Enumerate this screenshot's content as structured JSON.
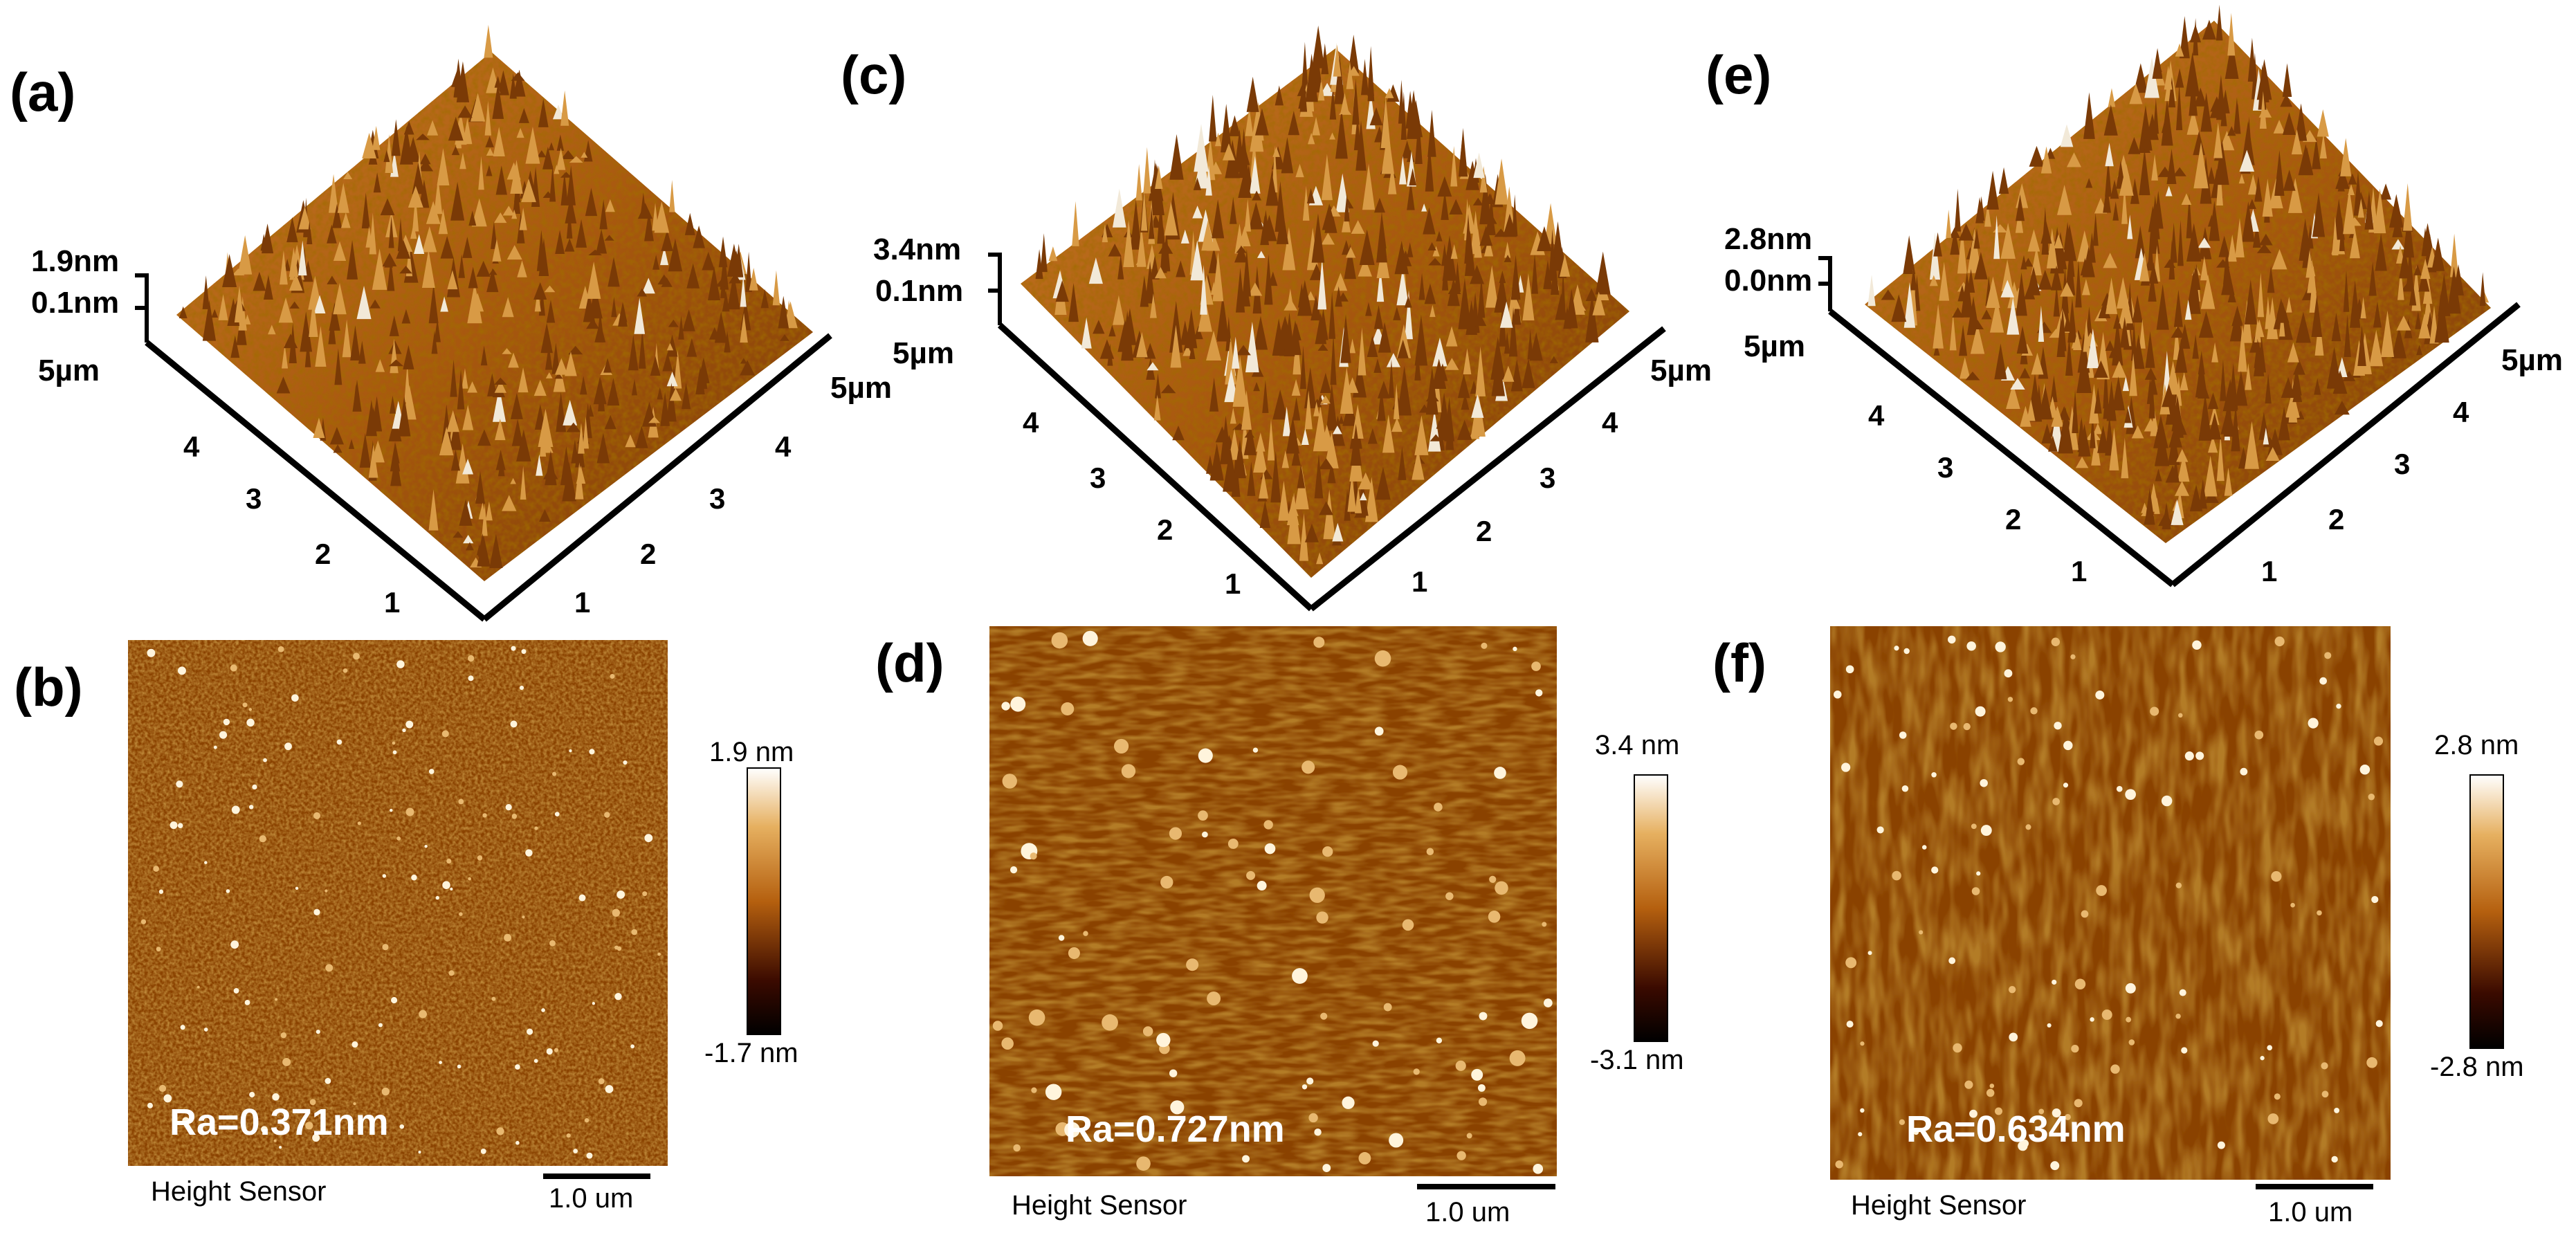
{
  "colors": {
    "afm_dark": "#2a0a00",
    "afm_mid": "#b5600f",
    "afm_light": "#f6e6c8",
    "axis": "#000000",
    "ra_text": "#ffffff"
  },
  "panels": [
    {
      "id": "a",
      "label": "(a)",
      "type": "3d",
      "z_max": "1.9nm",
      "z_min": "0.1nm",
      "corner": "5µm",
      "x_end": "5µm",
      "ticks": [
        "1",
        "2",
        "3",
        "4"
      ]
    },
    {
      "id": "b",
      "label": "(b)",
      "type": "2d",
      "cb_max": "1.9 nm",
      "cb_min": "-1.7 nm",
      "ra": "Ra=0.371nm",
      "sensor": "Height Sensor",
      "scale": "1.0 um"
    },
    {
      "id": "c",
      "label": "(c)",
      "type": "3d",
      "z_max": "3.4nm",
      "z_min": "0.1nm",
      "corner": "5µm",
      "x_end": "5µm",
      "ticks": [
        "1",
        "2",
        "3",
        "4"
      ]
    },
    {
      "id": "d",
      "label": "(d)",
      "type": "2d",
      "cb_max": "3.4 nm",
      "cb_min": "-3.1 nm",
      "ra": "Ra=0.727nm",
      "sensor": "Height Sensor",
      "scale": "1.0 um"
    },
    {
      "id": "e",
      "label": "(e)",
      "type": "3d",
      "z_max": "2.8nm",
      "z_min": "0.0nm",
      "corner": "5µm",
      "x_end": "5µm",
      "ticks": [
        "1",
        "2",
        "3",
        "4"
      ]
    },
    {
      "id": "f",
      "label": "(f)",
      "type": "2d",
      "cb_max": "2.8 nm",
      "cb_min": "-2.8 nm",
      "ra": "Ra=0.634nm",
      "sensor": "Height Sensor",
      "scale": "1.0 um"
    }
  ]
}
